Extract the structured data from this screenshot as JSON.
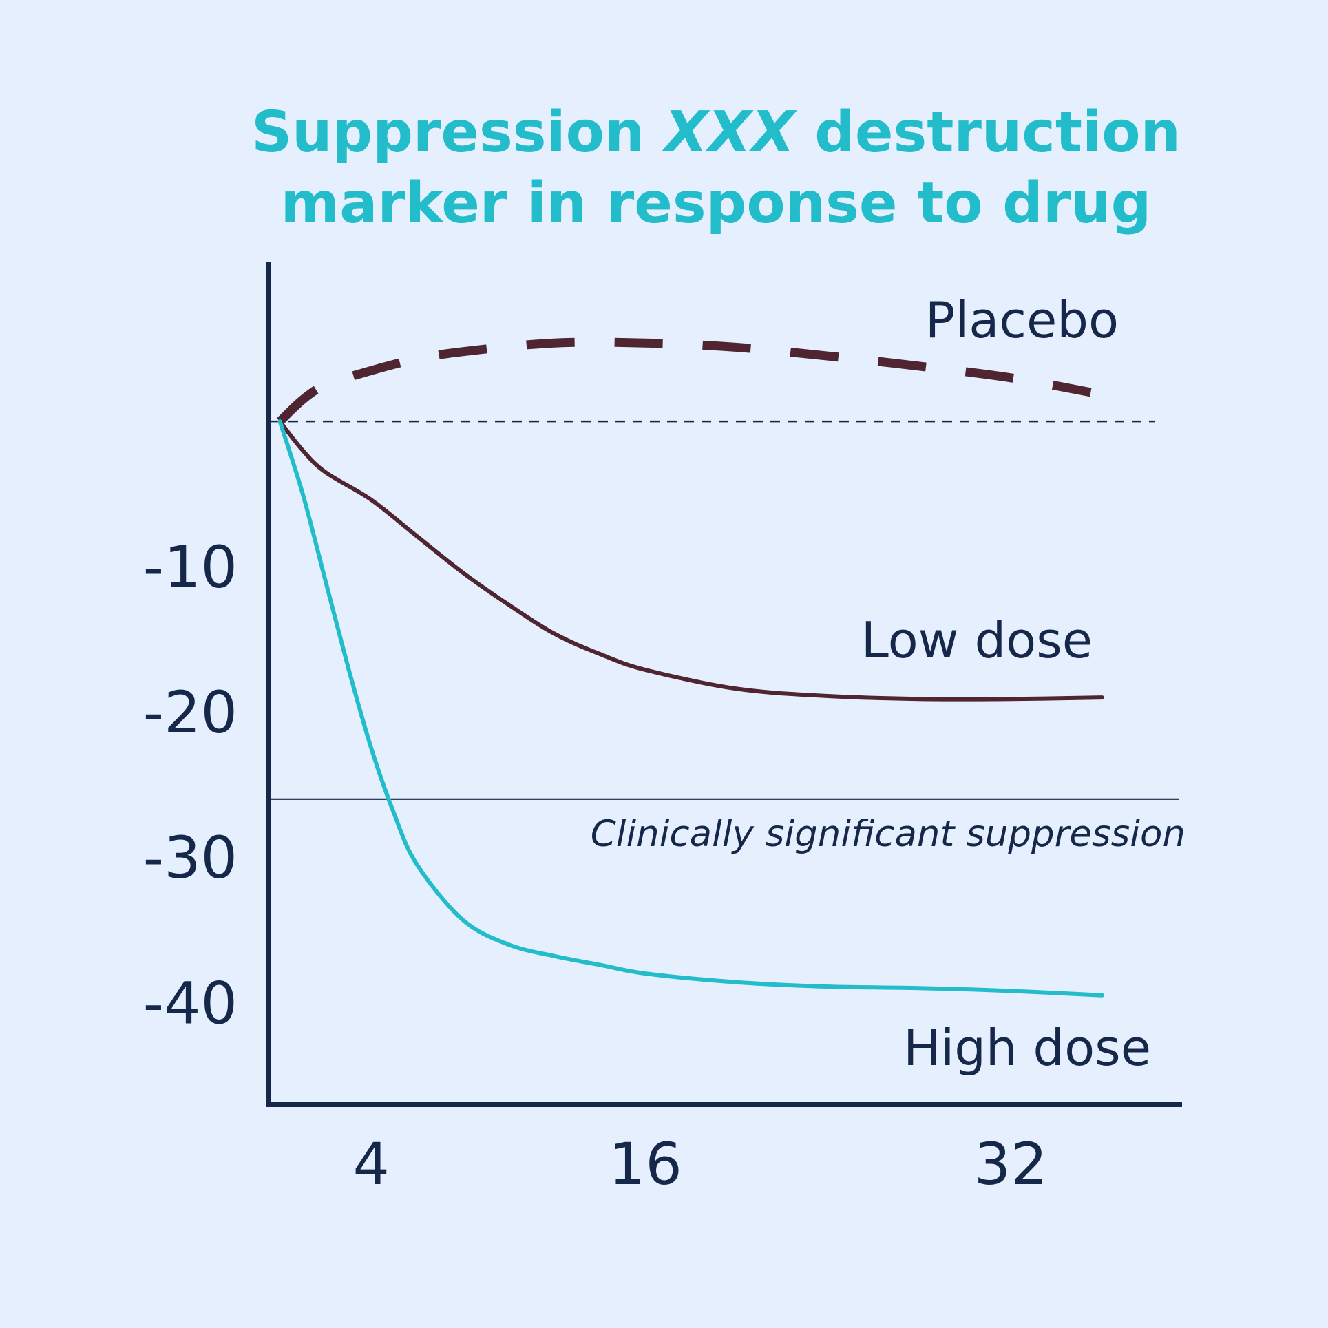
{
  "chart_data": {
    "type": "line",
    "title_line1_pre": "Suppression ",
    "title_line1_em": "XXX",
    "title_line1_post": " destruction",
    "title_line2": "marker in response to drug",
    "title": "Suppression XXX destruction marker in response to drug",
    "xlabel": "",
    "ylabel": "",
    "x_ticks": [
      "4",
      "16",
      "32"
    ],
    "y_ticks": [
      "-10",
      "-20",
      "-30",
      "-40"
    ],
    "xlim": [
      -0.5,
      39.5
    ],
    "ylim": [
      -47,
      11
    ],
    "baseline": 0,
    "threshold": {
      "value": -26,
      "label": "Clinically significant suppression"
    },
    "series": [
      {
        "name": "Placebo",
        "style": "dashed",
        "color": "#4e2530",
        "x": [
          0,
          1,
          2,
          4,
          6,
          8,
          12,
          16,
          20,
          24,
          28,
          32,
          35.5
        ],
        "y": [
          0,
          1.5,
          2.5,
          3.5,
          4.3,
          4.8,
          5.4,
          5.4,
          5.1,
          4.5,
          3.8,
          3.0,
          2.0
        ]
      },
      {
        "name": "Low dose",
        "style": "solid",
        "color": "#4e2530",
        "x": [
          0,
          1,
          2,
          4,
          6,
          8,
          10,
          12,
          14,
          16,
          20,
          24,
          28,
          32,
          36
        ],
        "y": [
          0,
          -2,
          -3.5,
          -5.4,
          -7.9,
          -10.4,
          -12.6,
          -14.6,
          -16.0,
          -17.1,
          -18.4,
          -18.9,
          -19.1,
          -19.1,
          -19.0
        ]
      },
      {
        "name": "High dose",
        "style": "solid",
        "color": "#22bccb",
        "x": [
          0,
          1,
          2,
          3,
          4,
          5,
          6,
          8,
          10,
          12,
          14,
          16,
          20,
          24,
          28,
          32,
          36
        ],
        "y": [
          0,
          -5,
          -11,
          -17,
          -22.5,
          -27,
          -30.5,
          -34.3,
          -36.0,
          -36.8,
          -37.4,
          -38.0,
          -38.6,
          -38.9,
          -39.0,
          -39.2,
          -39.5
        ]
      }
    ],
    "colors": {
      "background": "#e6effd",
      "title": "#22bccb",
      "axis": "#16284a",
      "text": "#16284a",
      "placebo": "#4e2530",
      "low_dose": "#4e2530",
      "high_dose": "#22bccb"
    },
    "grid": false,
    "legend": "inline"
  }
}
